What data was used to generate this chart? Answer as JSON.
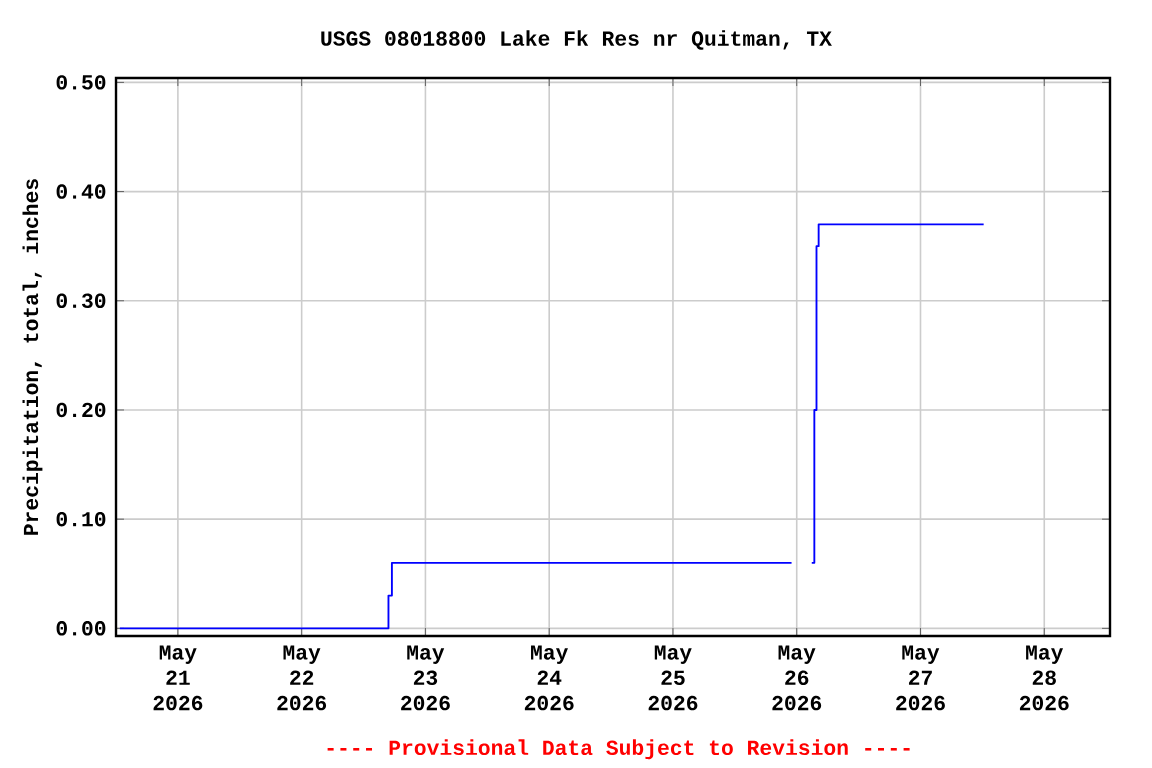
{
  "chart_data": {
    "type": "step",
    "title": "USGS 08018800 Lake Fk Res nr Quitman, TX",
    "ylabel": "Precipitation, total, inches",
    "annotations": [
      "---- Provisional Data Subject to Revision ----"
    ],
    "x": [
      "2026-05-20T12:45",
      "2026-05-22T16:50",
      "2026-05-22T17:30",
      "2026-05-25T23:00",
      "2026-05-25T23:30",
      "2026-05-26T02:55",
      "2026-05-26T03:25",
      "2026-05-26T03:50",
      "2026-05-26T04:15",
      "2026-05-27T12:15"
    ],
    "series": [
      {
        "color": "#0000ff",
        "values": [
          0,
          0.03,
          0.06,
          0.06,
          null,
          0.06,
          0.2,
          0.35,
          0.37,
          0.37
        ]
      }
    ],
    "xlim": [
      "2026-05-20T12:00",
      "2026-05-28T12:45"
    ],
    "xticks": [
      {
        "value": "2026-05-21",
        "label": "May 21 2026"
      },
      {
        "value": "2026-05-22",
        "label": "May 22 2026"
      },
      {
        "value": "2026-05-23",
        "label": "May 23 2026"
      },
      {
        "value": "2026-05-24",
        "label": "May 24 2026"
      },
      {
        "value": "2026-05-25",
        "label": "May 25 2026"
      },
      {
        "value": "2026-05-26",
        "label": "May 26 2026"
      },
      {
        "value": "2026-05-27",
        "label": "May 27 2026"
      },
      {
        "value": "2026-05-28",
        "label": "May 28 2026"
      }
    ],
    "ylim": [
      -0.007,
      0.504
    ],
    "yticks": [
      {
        "value": 0,
        "label": "0.00"
      },
      {
        "value": 0.1,
        "label": "0.10"
      },
      {
        "value": 0.2,
        "label": "0.20"
      },
      {
        "value": 0.3,
        "label": "0.30"
      },
      {
        "value": 0.4,
        "label": "0.40"
      },
      {
        "value": 0.5,
        "label": "0.50"
      }
    ],
    "grid": true,
    "marker": "none",
    "line_style": "solid"
  }
}
